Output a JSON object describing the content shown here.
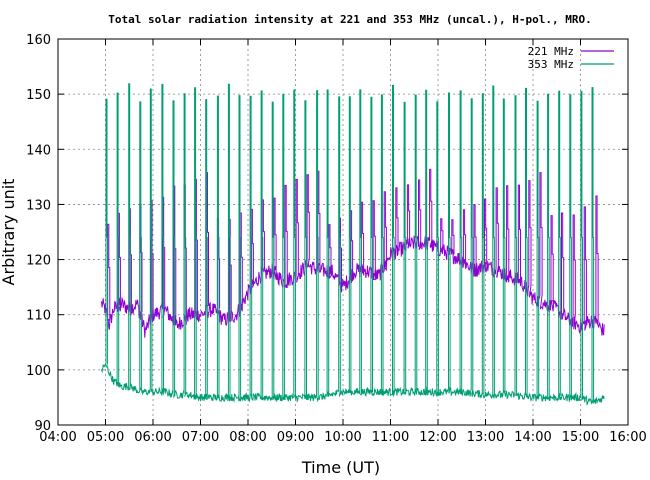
{
  "chart_data": {
    "type": "line",
    "title": "Total solar radiation intensity at 221 and 353 MHz (uncal.), H-pol., MRO.",
    "xlabel": "Time (UT)",
    "ylabel": "Arbitrary unit",
    "xlim": [
      "04:00",
      "16:00"
    ],
    "ylim": [
      90,
      160
    ],
    "x_ticks": [
      "04:00",
      "05:00",
      "06:00",
      "07:00",
      "08:00",
      "09:00",
      "10:00",
      "11:00",
      "12:00",
      "13:00",
      "14:00",
      "15:00",
      "16:00"
    ],
    "y_ticks": [
      90,
      100,
      110,
      120,
      130,
      140,
      150,
      160
    ],
    "grid": true,
    "legend_position": "top-right",
    "series": [
      {
        "name": "221 MHz",
        "color": "#9400d3",
        "x": [
          "04:55",
          "05:00",
          "05:05",
          "05:10",
          "05:20",
          "05:30",
          "05:40",
          "05:50",
          "06:00",
          "06:15",
          "06:30",
          "06:45",
          "07:00",
          "07:15",
          "07:30",
          "07:45",
          "08:00",
          "08:15",
          "08:30",
          "08:45",
          "09:00",
          "09:15",
          "09:30",
          "09:45",
          "10:00",
          "10:15",
          "10:30",
          "10:45",
          "11:00",
          "11:15",
          "11:30",
          "11:45",
          "12:00",
          "12:15",
          "12:30",
          "12:45",
          "13:00",
          "13:15",
          "13:30",
          "13:45",
          "14:00",
          "14:15",
          "14:30",
          "14:45",
          "15:00",
          "15:15",
          "15:30"
        ],
        "values": [
          112,
          111,
          108,
          111,
          112,
          111,
          112,
          107,
          110,
          111,
          108,
          110,
          110,
          111,
          109,
          110,
          114,
          117,
          118,
          116,
          117,
          119,
          118,
          118,
          115,
          118,
          118,
          117,
          121,
          122,
          123,
          123,
          122,
          121,
          120,
          118,
          119,
          118,
          117,
          116,
          113,
          112,
          111,
          109,
          108,
          109,
          107
        ],
        "burst_peaks": [
          128,
          129,
          130,
          131,
          132,
          133,
          134,
          135,
          136,
          137
        ]
      },
      {
        "name": "353 MHz",
        "color": "#009e73",
        "x": [
          "04:55",
          "05:00",
          "05:10",
          "05:20",
          "05:30",
          "05:45",
          "06:00",
          "06:15",
          "06:30",
          "06:45",
          "07:00",
          "07:15",
          "07:30",
          "07:45",
          "08:00",
          "08:30",
          "09:00",
          "09:30",
          "10:00",
          "10:30",
          "11:00",
          "11:30",
          "12:00",
          "12:30",
          "13:00",
          "13:30",
          "14:00",
          "14:30",
          "15:00",
          "15:15",
          "15:30"
        ],
        "values": [
          100,
          101,
          98,
          97,
          97,
          96,
          96,
          96,
          95.5,
          95.5,
          95,
          95,
          95,
          95,
          95,
          95,
          95,
          95,
          96,
          96,
          96,
          96,
          96,
          96,
          95.5,
          95.5,
          95,
          95,
          95,
          94,
          95
        ],
        "burst_peaks": [
          150,
          151,
          152
        ]
      }
    ]
  }
}
